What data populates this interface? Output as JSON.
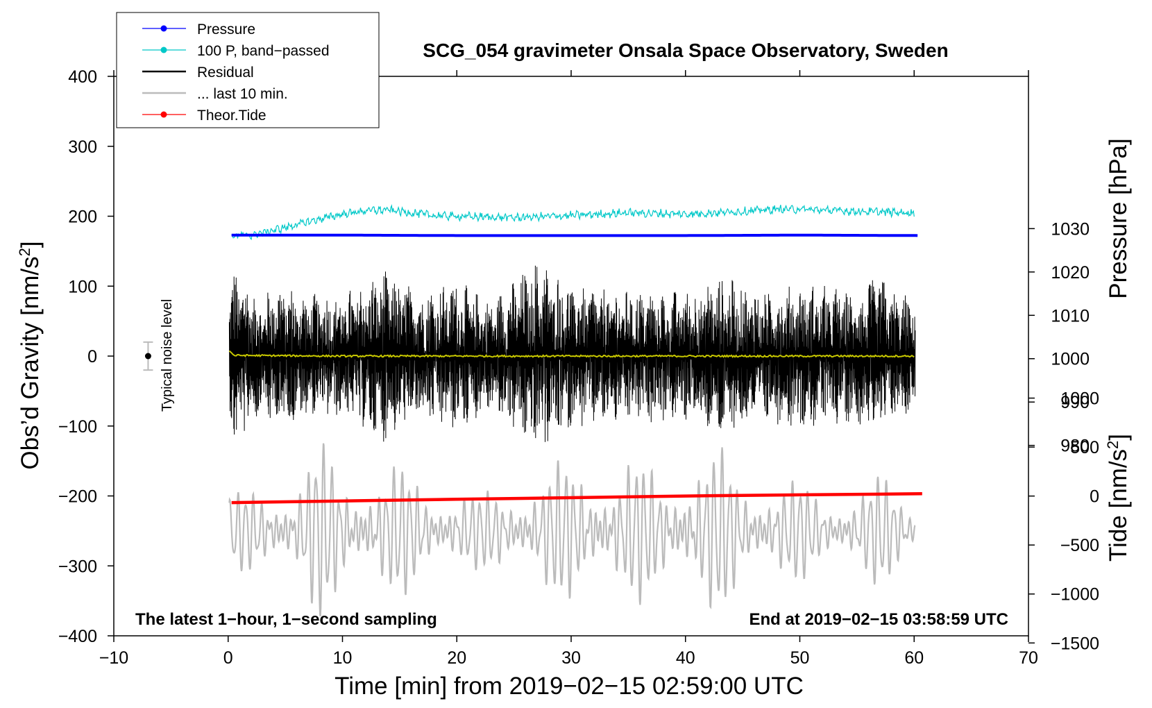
{
  "chart_data": {
    "type": "line",
    "title": "SCG_054 gravimeter Onsala Space Observatory, Sweden",
    "xlabel": "Time [min] from 2019−02−15 02:59:00 UTC",
    "ylabel_left": "Obs’d Gravity [nm/s²]",
    "ylabel_left_parts": [
      "Obs’d Gravity [nm/s",
      "2",
      "]"
    ],
    "ylabel_right_pressure": "Pressure [hPa]",
    "ylabel_right_tide_parts": [
      "Tide [nm/s",
      "2",
      "]"
    ],
    "xlim": [
      -10,
      70
    ],
    "ylim_left": [
      -400,
      400
    ],
    "x_ticks": [
      -10,
      0,
      10,
      20,
      30,
      40,
      50,
      60,
      70
    ],
    "x_tick_labels": [
      "−10",
      "0",
      "10",
      "20",
      "30",
      "40",
      "50",
      "60",
      "70"
    ],
    "y_left_ticks": [
      400,
      300,
      200,
      100,
      0,
      -100,
      -200,
      -300,
      -400
    ],
    "y_left_tick_labels": [
      "400",
      "300",
      "200",
      "100",
      "0",
      "−100",
      "−200",
      "−300",
      "−400"
    ],
    "pressure_axis": {
      "ticks": [
        1030,
        1020,
        1010,
        1000,
        990,
        980
      ],
      "tick_labels": [
        "1030",
        "1020",
        "1010",
        "1000",
        "990",
        "980"
      ],
      "value_per_left_unit": 0.1613,
      "value_at_left_zero": 1000.6
    },
    "tide_axis": {
      "ticks": [
        1000,
        500,
        0,
        -500,
        -1000,
        -1500
      ],
      "tick_labels": [
        "1000",
        "500",
        "0",
        "−500",
        "−1000",
        "−1500"
      ],
      "value_per_left_unit": 7.14,
      "value_at_left_zero": 1429
    },
    "legend": [
      {
        "label": "Pressure",
        "color": "#0000ff",
        "marker": "dot"
      },
      {
        "label": "100 P, band−passed",
        "color": "#00c8c8",
        "marker": "dot"
      },
      {
        "label": "Residual",
        "color": "#000000",
        "marker": "none"
      },
      {
        "label": "... last 10 min.",
        "color": "#bbbbbb",
        "marker": "none"
      },
      {
        "label": "Theor.Tide",
        "color": "#ff0000",
        "marker": "dot"
      }
    ],
    "series": [
      {
        "name": "Pressure",
        "axis": "pressure",
        "color": "#0000ff",
        "x": [
          0.3,
          10,
          20,
          30,
          40,
          50,
          60.3
        ],
        "y": [
          1028.5,
          1028.5,
          1028.4,
          1028.4,
          1028.4,
          1028.5,
          1028.4
        ]
      },
      {
        "name": "100 P, band−passed",
        "axis": "left",
        "color": "#00c8c8",
        "x": [
          0.3,
          2,
          4,
          6,
          8,
          10,
          12,
          14,
          16,
          18,
          20,
          25,
          30,
          35,
          40,
          45,
          48,
          50,
          55,
          60
        ],
        "y": [
          172,
          173,
          180,
          188,
          196,
          203,
          208,
          209,
          205,
          201,
          200,
          198,
          201,
          205,
          203,
          207,
          210,
          210,
          207,
          205
        ]
      },
      {
        "name": "Residual",
        "axis": "left",
        "color": "#000000",
        "x": [
          0.1,
          60.1
        ],
        "envelope": [
          {
            "x": 0,
            "amp": 90
          },
          {
            "x": 0.6,
            "amp": 132
          },
          {
            "x": 3,
            "amp": 80
          },
          {
            "x": 4,
            "amp": 110
          },
          {
            "x": 7,
            "amp": 90
          },
          {
            "x": 10,
            "amp": 90
          },
          {
            "x": 13.6,
            "amp": 125
          },
          {
            "x": 17,
            "amp": 95
          },
          {
            "x": 20,
            "amp": 110
          },
          {
            "x": 23,
            "amp": 80
          },
          {
            "x": 27,
            "amp": 140
          },
          {
            "x": 30,
            "amp": 105
          },
          {
            "x": 33,
            "amp": 100
          },
          {
            "x": 37,
            "amp": 95
          },
          {
            "x": 40,
            "amp": 95
          },
          {
            "x": 43,
            "amp": 115
          },
          {
            "x": 47,
            "amp": 95
          },
          {
            "x": 50,
            "amp": 105
          },
          {
            "x": 53,
            "amp": 100
          },
          {
            "x": 55,
            "amp": 95
          },
          {
            "x": 57,
            "amp": 120
          },
          {
            "x": 58,
            "amp": 95
          },
          {
            "x": 60,
            "amp": 85
          }
        ]
      },
      {
        "name": "Residual (smoothed)",
        "axis": "left",
        "color": "#c8c800",
        "x": [
          0.1,
          0.5,
          10,
          20,
          30,
          40,
          50,
          60
        ],
        "y": [
          8,
          1,
          0,
          0,
          0,
          0,
          0,
          0
        ]
      },
      {
        "name": "... last 10 min.",
        "axis": "left",
        "color": "#bbbbbb",
        "x": [
          0.1,
          60.1
        ],
        "center": -250,
        "envelope": [
          {
            "x": 0,
            "amp": 45
          },
          {
            "x": 3,
            "amp": 55
          },
          {
            "x": 6,
            "amp": 70
          },
          {
            "x": 8,
            "amp": 110
          },
          {
            "x": 10,
            "amp": 80
          },
          {
            "x": 13,
            "amp": 80
          },
          {
            "x": 15,
            "amp": 80
          },
          {
            "x": 18,
            "amp": 60
          },
          {
            "x": 20,
            "amp": 55
          },
          {
            "x": 22,
            "amp": 45
          },
          {
            "x": 25,
            "amp": 60
          },
          {
            "x": 28,
            "amp": 80
          },
          {
            "x": 30,
            "amp": 85
          },
          {
            "x": 33,
            "amp": 85
          },
          {
            "x": 35,
            "amp": 90
          },
          {
            "x": 38,
            "amp": 75
          },
          {
            "x": 41,
            "amp": 100
          },
          {
            "x": 43,
            "amp": 100
          },
          {
            "x": 45,
            "amp": 70
          },
          {
            "x": 48,
            "amp": 70
          },
          {
            "x": 50,
            "amp": 60
          },
          {
            "x": 52,
            "amp": 45
          },
          {
            "x": 55,
            "amp": 55
          },
          {
            "x": 57,
            "amp": 70
          },
          {
            "x": 60,
            "amp": 35
          }
        ]
      },
      {
        "name": "Theor.Tide",
        "axis": "tide",
        "color": "#ff0000",
        "x": [
          0.3,
          10,
          20,
          30,
          40,
          50,
          60.7
        ],
        "y": [
          -67,
          -50,
          -33,
          -17,
          0,
          12,
          24
        ]
      }
    ],
    "noise_bar": {
      "label": "Typical noise level",
      "x": -7,
      "y": 0,
      "err": 20
    },
    "annotations": {
      "bottom_left": "The latest 1−hour, 1−second sampling",
      "bottom_right": "End at 2019−02−15 03:58:59 UTC"
    }
  }
}
